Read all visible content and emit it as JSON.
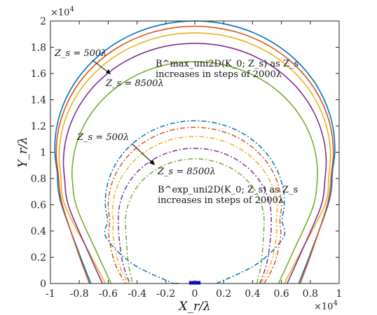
{
  "chart_data": {
    "type": "line",
    "xlabel": "X_r/λ",
    "ylabel": "Y_r/λ",
    "xlim": [
      -10000,
      10000
    ],
    "ylim": [
      0,
      20000
    ],
    "x_scale_note": "×10^4",
    "y_scale_note": "×10^4",
    "x_ticks": [
      "-1",
      "-0.8",
      "-0.6",
      "-0.4",
      "-0.2",
      "0",
      "0.2",
      "0.4",
      "0.6",
      "0.8",
      "1"
    ],
    "y_ticks": [
      "0",
      "0.2",
      "0.4",
      "0.6",
      "0.8",
      "1",
      "1.2",
      "1.4",
      "1.6",
      "1.8",
      "2"
    ],
    "colors": [
      "#0072BD",
      "#D95319",
      "#EDB120",
      "#7E2F8E",
      "#77AC30"
    ],
    "annotations": {
      "max_zs_start": "Z_s = 500λ",
      "max_zs_end": "Z_s = 8500λ",
      "max_desc_line1": "B^max_uni2D(K_0; Z_s) as Z_s",
      "max_desc_line2": "increases in steps of 2000λ",
      "exp_zs_start": "Z_s = 500λ",
      "exp_zs_end": "Z_s = 8500λ",
      "exp_desc_line1": "B^exp_uni2D(K_0; Z_s) as Z_s",
      "exp_desc_line2": "increases in steps of 2000λ"
    },
    "series_max": [
      {
        "zs": 500,
        "color": "#0072BD",
        "peak": 20000,
        "base_x": 1500,
        "side_x": 9700,
        "waist_y": 4500,
        "foot_x": 7200
      },
      {
        "zs": 2500,
        "color": "#D95319",
        "peak": 19600,
        "base_x": 1500,
        "side_x": 9600,
        "waist_y": 4400,
        "foot_x": 7300
      },
      {
        "zs": 4500,
        "color": "#EDB120",
        "peak": 19100,
        "base_x": 1500,
        "side_x": 9400,
        "waist_y": 4300,
        "foot_x": 6200
      },
      {
        "zs": 6500,
        "color": "#7E2F8E",
        "peak": 18300,
        "base_x": 1500,
        "side_x": 9100,
        "waist_y": 4200,
        "foot_x": 6400
      },
      {
        "zs": 8500,
        "color": "#77AC30",
        "peak": 16900,
        "base_x": 1500,
        "side_x": 8500,
        "waist_y": 4100,
        "foot_x": 5800
      }
    ],
    "series_exp": [
      {
        "zs": 500,
        "color": "#0072BD",
        "peak": 12400,
        "side_x": 6200,
        "foot_x": 1500
      },
      {
        "zs": 2500,
        "color": "#D95319",
        "peak": 11900,
        "side_x": 6000,
        "foot_x": 4800
      },
      {
        "zs": 4500,
        "color": "#EDB120",
        "peak": 11200,
        "side_x": 5700,
        "foot_x": 4600
      },
      {
        "zs": 6500,
        "color": "#7E2F8E",
        "peak": 10300,
        "side_x": 5300,
        "foot_x": 4500
      },
      {
        "zs": 8500,
        "color": "#77AC30",
        "peak": 9500,
        "side_x": 4800,
        "foot_x": 4300
      }
    ],
    "array_marker": {
      "x_range": [
        -400,
        400
      ],
      "y": 0,
      "color": "#0000ff"
    }
  }
}
